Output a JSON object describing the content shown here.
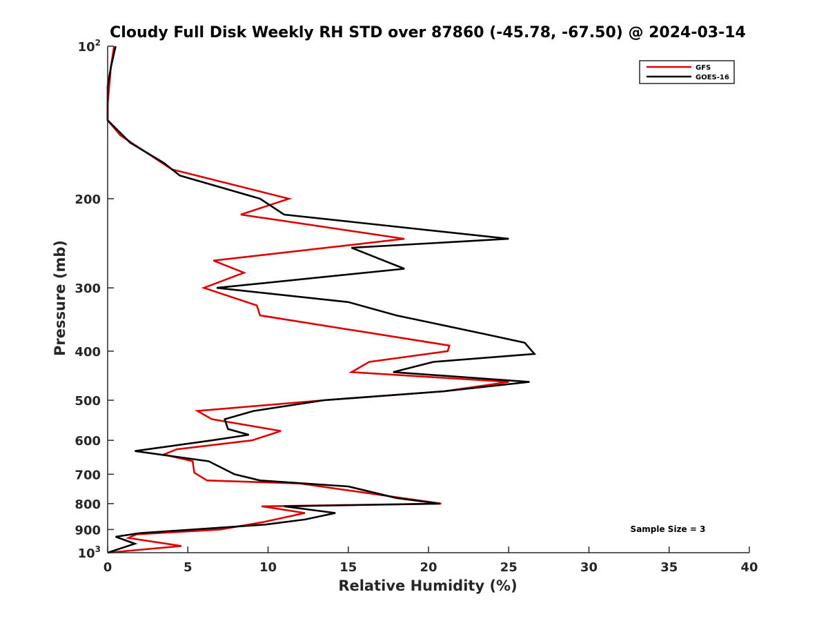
{
  "chart_data": {
    "type": "line",
    "title": "Cloudy Full Disk Weekly RH STD over 87860 (-45.78, -67.50) @ 2024-03-14",
    "xlabel": "Relative Humidity (%)",
    "ylabel": "Pressure (mb)",
    "xlim": [
      0,
      40
    ],
    "ylim": [
      1000,
      100
    ],
    "yscale": "log",
    "y_reversed": true,
    "grid": false,
    "legend_position": "top-right",
    "x_ticks": [
      "0",
      "5",
      "10",
      "15",
      "20",
      "25",
      "30",
      "35",
      "40"
    ],
    "y_ticks": [
      {
        "value": 100,
        "base": "10",
        "exp": "2"
      },
      {
        "value": 200,
        "label": "200"
      },
      {
        "value": 300,
        "label": "300"
      },
      {
        "value": 400,
        "label": "400"
      },
      {
        "value": 500,
        "label": "500"
      },
      {
        "value": 600,
        "label": "600"
      },
      {
        "value": 700,
        "label": "700"
      },
      {
        "value": 800,
        "label": "800"
      },
      {
        "value": 900,
        "label": "900"
      },
      {
        "value": 1000,
        "base": "10",
        "exp": "3"
      }
    ],
    "annotation": "Sample Size = 3",
    "series": [
      {
        "name": "GFS",
        "color": "#dd0000",
        "points": [
          [
            0.4,
            100
          ],
          [
            0.2,
            110
          ],
          [
            0.1,
            120
          ],
          [
            0.0,
            130
          ],
          [
            0.0,
            140
          ],
          [
            0.8,
            150
          ],
          [
            4.0,
            175
          ],
          [
            11.3,
            200
          ],
          [
            8.3,
            215
          ],
          [
            18.5,
            240
          ],
          [
            6.6,
            265
          ],
          [
            8.5,
            280
          ],
          [
            6.0,
            300
          ],
          [
            9.3,
            325
          ],
          [
            9.5,
            340
          ],
          [
            21.3,
            390
          ],
          [
            21.2,
            400
          ],
          [
            16.3,
            420
          ],
          [
            15.2,
            440
          ],
          [
            25.0,
            460
          ],
          [
            21.0,
            480
          ],
          [
            13.5,
            500
          ],
          [
            5.6,
            525
          ],
          [
            6.5,
            545
          ],
          [
            10.8,
            575
          ],
          [
            9.0,
            600
          ],
          [
            4.3,
            625
          ],
          [
            3.5,
            640
          ],
          [
            5.3,
            660
          ],
          [
            5.4,
            695
          ],
          [
            6.2,
            720
          ],
          [
            12.0,
            730
          ],
          [
            20.8,
            800
          ],
          [
            9.6,
            810
          ],
          [
            12.3,
            835
          ],
          [
            9.7,
            870
          ],
          [
            7.0,
            900
          ],
          [
            1.8,
            920
          ],
          [
            1.3,
            935
          ],
          [
            4.6,
            970
          ],
          [
            0.0,
            1000
          ]
        ]
      },
      {
        "name": "GOES-16",
        "color": "#000000",
        "points": [
          [
            0.5,
            100
          ],
          [
            0.2,
            110
          ],
          [
            0.0,
            120
          ],
          [
            0.0,
            130
          ],
          [
            0.0,
            140
          ],
          [
            1.4,
            155
          ],
          [
            3.5,
            170
          ],
          [
            4.5,
            180
          ],
          [
            9.5,
            200
          ],
          [
            11.0,
            215
          ],
          [
            25.0,
            240
          ],
          [
            15.2,
            250
          ],
          [
            18.5,
            275
          ],
          [
            6.8,
            300
          ],
          [
            15.0,
            320
          ],
          [
            18.0,
            340
          ],
          [
            23.5,
            370
          ],
          [
            26.0,
            385
          ],
          [
            26.6,
            405
          ],
          [
            20.3,
            420
          ],
          [
            17.8,
            440
          ],
          [
            26.3,
            460
          ],
          [
            21.0,
            480
          ],
          [
            13.5,
            500
          ],
          [
            9.1,
            525
          ],
          [
            7.3,
            545
          ],
          [
            7.5,
            570
          ],
          [
            8.8,
            585
          ],
          [
            6.5,
            600
          ],
          [
            1.7,
            630
          ],
          [
            6.3,
            660
          ],
          [
            7.9,
            700
          ],
          [
            9.5,
            720
          ],
          [
            15.0,
            740
          ],
          [
            18.0,
            780
          ],
          [
            20.7,
            800
          ],
          [
            11.0,
            810
          ],
          [
            14.2,
            835
          ],
          [
            12.3,
            860
          ],
          [
            9.8,
            880
          ],
          [
            2.0,
            915
          ],
          [
            0.5,
            930
          ],
          [
            1.7,
            960
          ],
          [
            0.0,
            1000
          ]
        ]
      }
    ]
  }
}
